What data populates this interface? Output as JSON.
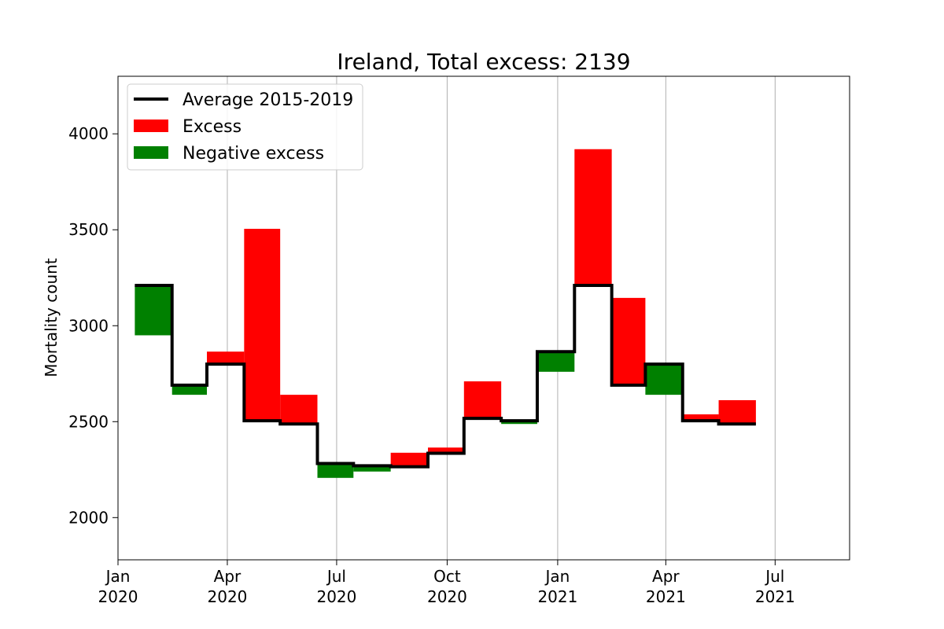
{
  "chart_data": {
    "type": "bar",
    "title": "Ireland, Total excess: 2139",
    "xlabel": "",
    "ylabel": "Mortality count",
    "ylim": [
      1780,
      4300
    ],
    "xlim": [
      "2020-01-01",
      "2021-09-01"
    ],
    "yticks": [
      2000,
      2500,
      3000,
      3500,
      4000
    ],
    "ytick_labels": [
      "2000",
      "2500",
      "3000",
      "3500",
      "4000"
    ],
    "xticks": [
      {
        "date": "2020-01-01",
        "label_line1": "Jan",
        "label_line2": "2020"
      },
      {
        "date": "2020-04-01",
        "label_line1": "Apr",
        "label_line2": "2020"
      },
      {
        "date": "2020-07-01",
        "label_line1": "Jul",
        "label_line2": "2020"
      },
      {
        "date": "2020-10-01",
        "label_line1": "Oct",
        "label_line2": "2020"
      },
      {
        "date": "2021-01-01",
        "label_line1": "Jan",
        "label_line2": "2021"
      },
      {
        "date": "2021-04-01",
        "label_line1": "Apr",
        "label_line2": "2021"
      },
      {
        "date": "2021-07-01",
        "label_line1": "Jul",
        "label_line2": "2021"
      }
    ],
    "grid": "vertical",
    "legend": {
      "placement": "top-left",
      "entries": [
        {
          "label": "Average 2015-2019",
          "kind": "line",
          "color": "#000000"
        },
        {
          "label": "Excess",
          "kind": "patch",
          "color": "#ff0000"
        },
        {
          "label": "Negative excess",
          "kind": "patch",
          "color": "#008000"
        }
      ]
    },
    "colors": {
      "excess": "#ff0000",
      "negative": "#008000",
      "average": "#000000"
    },
    "periods": [
      {
        "start": "2020-01-15",
        "end": "2020-02-15",
        "average": 3210,
        "actual": 2950
      },
      {
        "start": "2020-02-15",
        "end": "2020-03-15",
        "average": 2690,
        "actual": 2640
      },
      {
        "start": "2020-03-15",
        "end": "2020-04-15",
        "average": 2800,
        "actual": 2865
      },
      {
        "start": "2020-04-15",
        "end": "2020-05-15",
        "average": 2505,
        "actual": 3505
      },
      {
        "start": "2020-05-15",
        "end": "2020-06-15",
        "average": 2488,
        "actual": 2640
      },
      {
        "start": "2020-06-15",
        "end": "2020-07-15",
        "average": 2282,
        "actual": 2207
      },
      {
        "start": "2020-07-15",
        "end": "2020-08-15",
        "average": 2270,
        "actual": 2240
      },
      {
        "start": "2020-08-15",
        "end": "2020-09-15",
        "average": 2265,
        "actual": 2338
      },
      {
        "start": "2020-09-15",
        "end": "2020-10-15",
        "average": 2335,
        "actual": 2365
      },
      {
        "start": "2020-10-15",
        "end": "2020-11-15",
        "average": 2517,
        "actual": 2710
      },
      {
        "start": "2020-11-15",
        "end": "2020-12-15",
        "average": 2505,
        "actual": 2488
      },
      {
        "start": "2020-12-15",
        "end": "2021-01-15",
        "average": 2865,
        "actual": 2760
      },
      {
        "start": "2021-01-15",
        "end": "2021-02-15",
        "average": 3210,
        "actual": 3920
      },
      {
        "start": "2021-02-15",
        "end": "2021-03-15",
        "average": 2690,
        "actual": 3145
      },
      {
        "start": "2021-03-15",
        "end": "2021-04-15",
        "average": 2800,
        "actual": 2640
      },
      {
        "start": "2021-04-15",
        "end": "2021-05-15",
        "average": 2505,
        "actual": 2538
      },
      {
        "start": "2021-05-15",
        "end": "2021-06-15",
        "average": 2488,
        "actual": 2612
      }
    ]
  }
}
